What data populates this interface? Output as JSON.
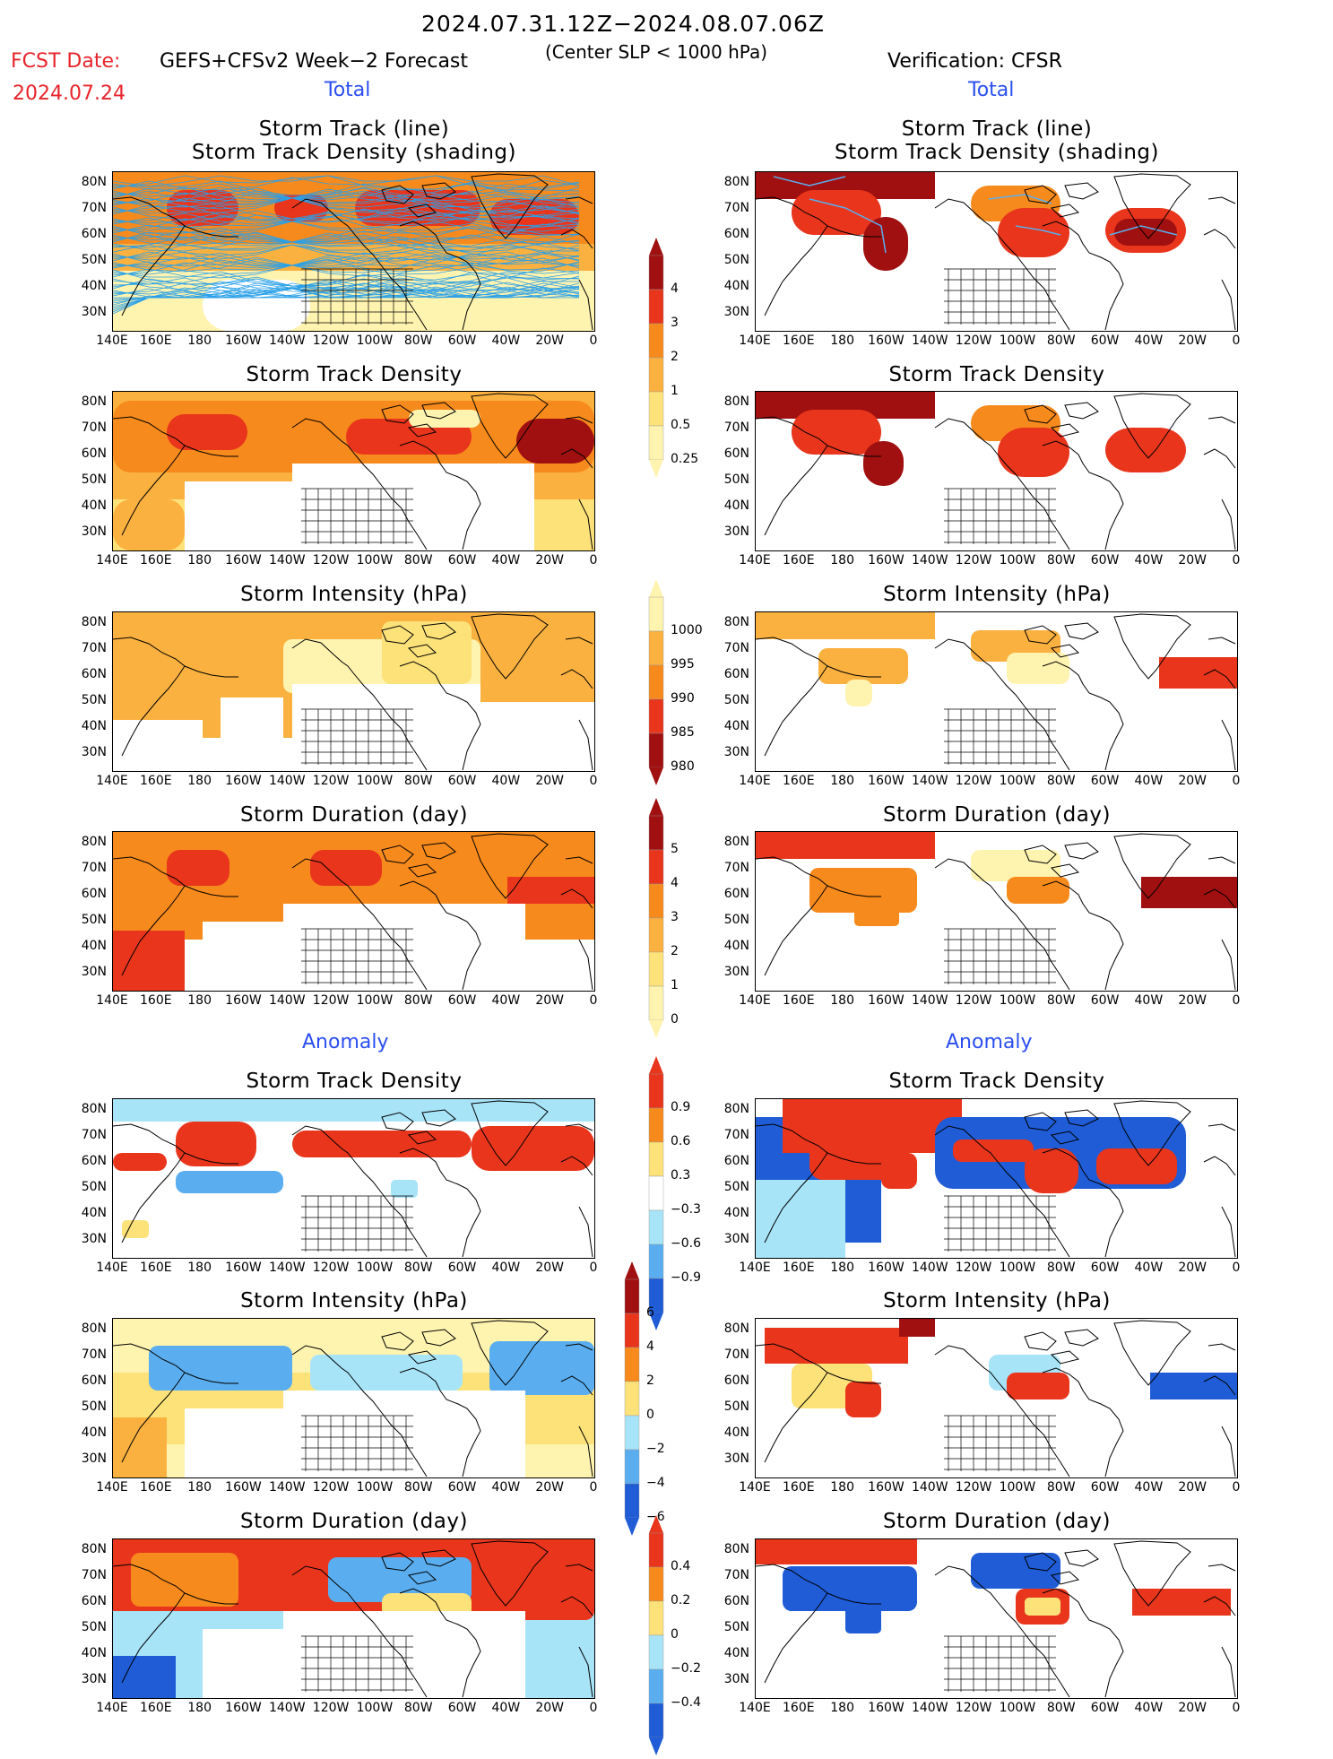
{
  "header": {
    "period": "2024.07.31.12Z−2024.08.07.06Z",
    "fcst_label": "FCST Date:",
    "fcst_date": "2024.07.24",
    "model": "GEFS+CFSv2 Week−2 Forecast",
    "criterion": "(Center SLP < 1000 hPa)",
    "verification": "Verification: CFSR",
    "total_label": "Total",
    "anomaly_label": "Anomaly"
  },
  "panels": {
    "p1_line1": "Storm Track (line)",
    "p1_line2": "Storm Track Density (shading)",
    "density": "Storm Track Density",
    "intensity": "Storm Intensity (hPa)",
    "duration": "Storm Duration (day)"
  },
  "axes": {
    "lat_labels": [
      "80N",
      "70N",
      "60N",
      "50N",
      "40N",
      "30N"
    ],
    "lon_labels": [
      "140E",
      "160E",
      "180",
      "160W",
      "140W",
      "120W",
      "100W",
      "80W",
      "60W",
      "40W",
      "20W",
      "0"
    ]
  },
  "colorbars": {
    "density_total": [
      "4",
      "3",
      "2",
      "1",
      "0.5",
      "0.25"
    ],
    "intensity_total": [
      "1000",
      "995",
      "990",
      "985",
      "980"
    ],
    "duration_total": [
      "5",
      "4",
      "3",
      "2",
      "1",
      "0"
    ],
    "density_anom": [
      "0.9",
      "0.6",
      "0.3",
      "−0.3",
      "−0.6",
      "−0.9"
    ],
    "intensity_anom": [
      "6",
      "4",
      "2",
      "0",
      "−2",
      "−4",
      "−6"
    ],
    "duration_anom": [
      "0.4",
      "0.2",
      "0",
      "−0.2",
      "−0.4"
    ]
  },
  "colors": {
    "dark_red": "#a01010",
    "red": "#e8351c",
    "orange": "#f78a1c",
    "light_orange": "#fbb140",
    "yellow": "#fde27a",
    "pale_yellow": "#fff3b0",
    "light_blue": "#a8e4f8",
    "mid_blue": "#5aaeef",
    "dark_blue": "#1f5cd6",
    "track_line": "#2aa0e8"
  }
}
